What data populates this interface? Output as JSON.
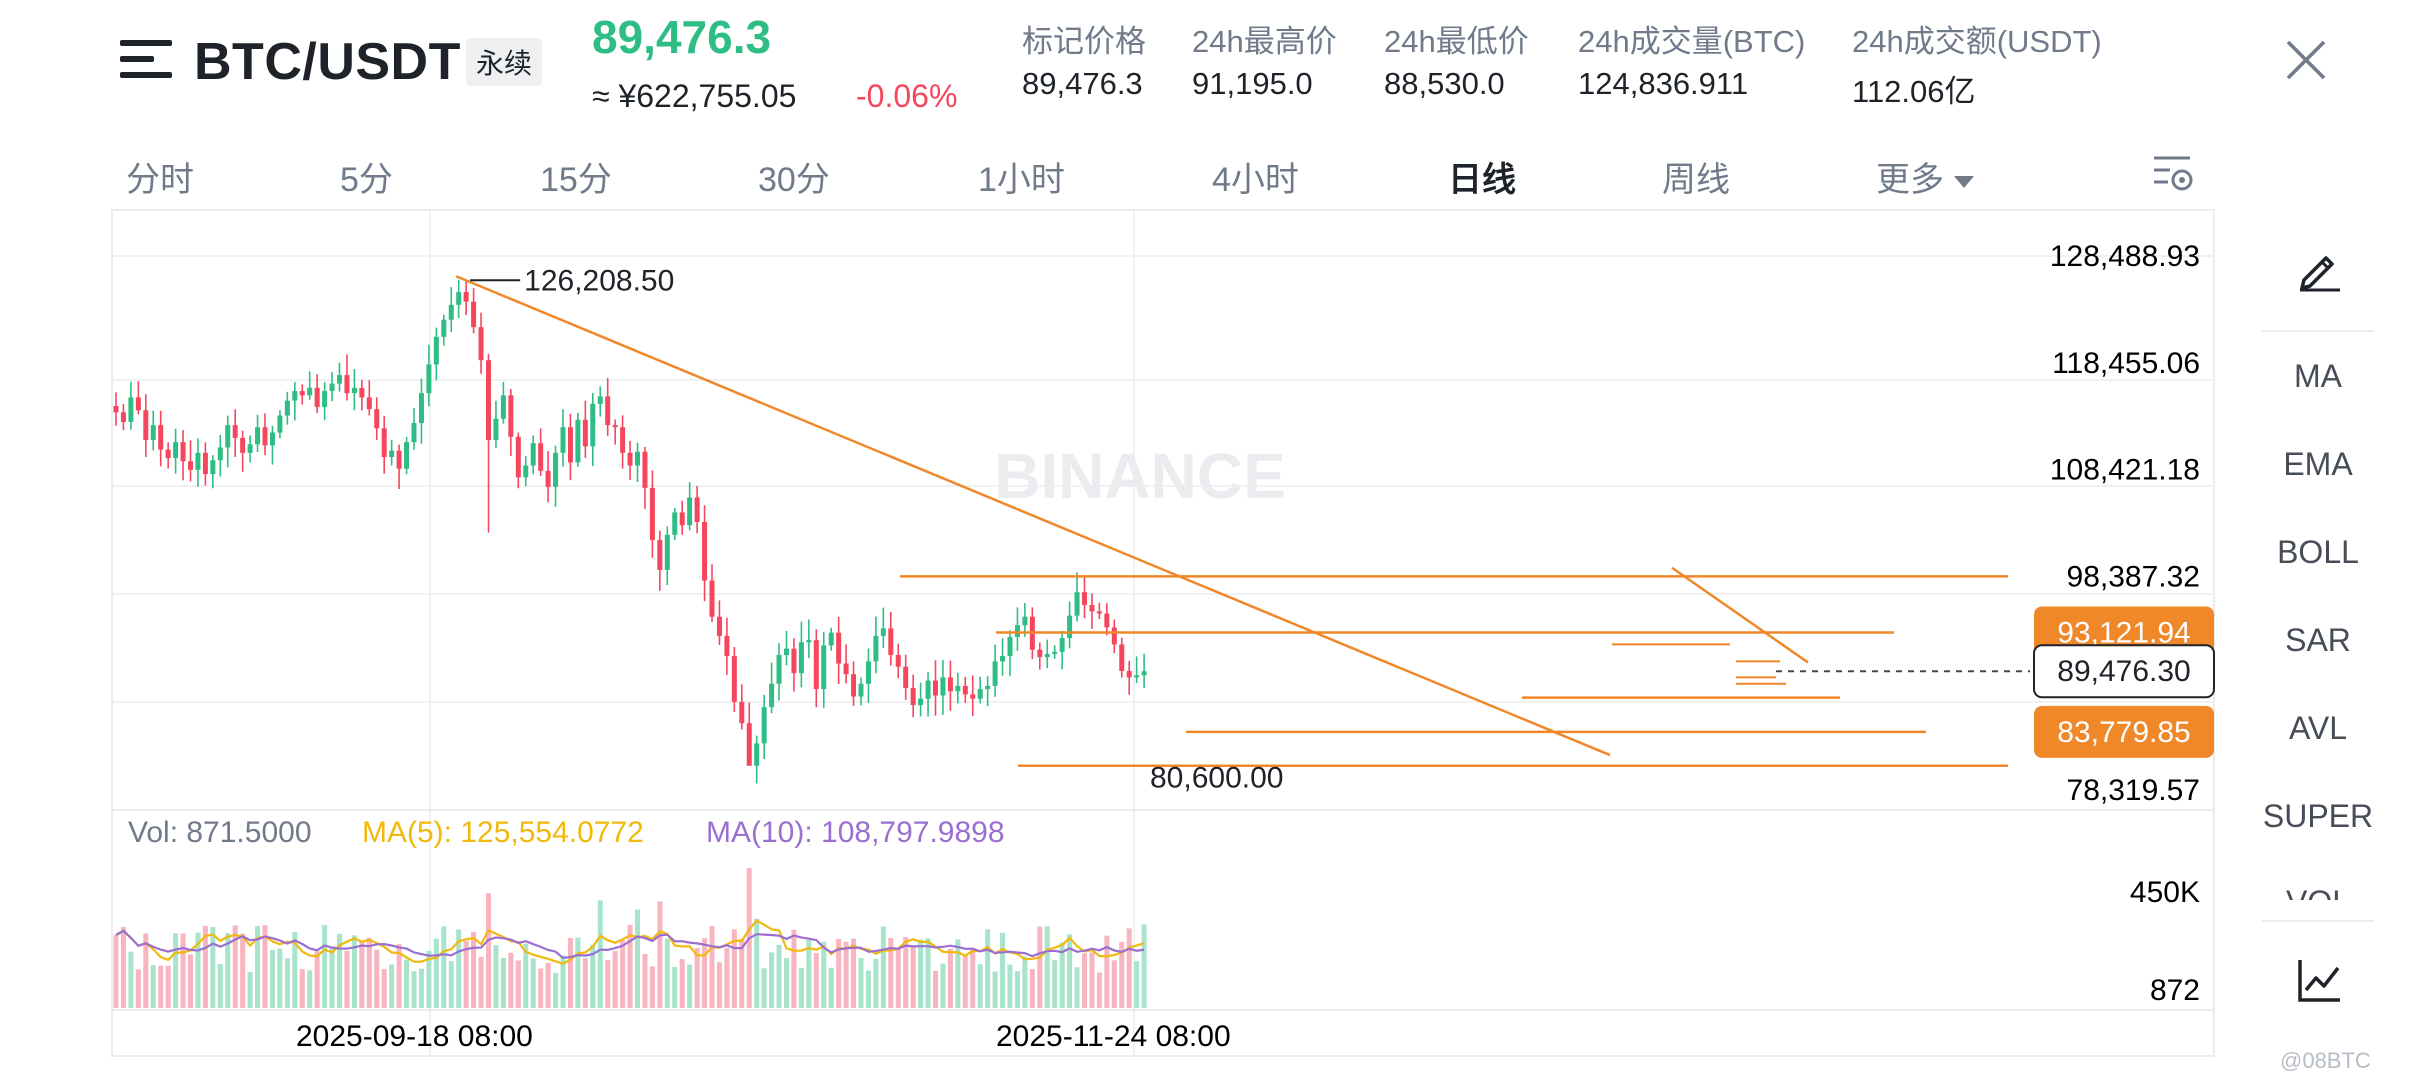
{
  "header": {
    "pair": "BTC/USDT",
    "contract_type": "永续",
    "last_price": "89,476.3",
    "cny_price": "≈ ¥622,755.05",
    "change_pct": "-0.06%",
    "stats": [
      {
        "label": "标记价格",
        "value": "89,476.3"
      },
      {
        "label": "24h最高价",
        "value": "91,195.0"
      },
      {
        "label": "24h最低价",
        "value": "88,530.0"
      },
      {
        "label": "24h成交量(BTC)",
        "value": "124,836.911"
      },
      {
        "label": "24h成交额(USDT)",
        "value": "112.06亿"
      }
    ]
  },
  "intervals": [
    {
      "label": "分时",
      "active": false
    },
    {
      "label": "5分",
      "active": false
    },
    {
      "label": "15分",
      "active": false
    },
    {
      "label": "30分",
      "active": false
    },
    {
      "label": "1小时",
      "active": false
    },
    {
      "label": "4小时",
      "active": false
    },
    {
      "label": "日线",
      "active": true
    },
    {
      "label": "周线",
      "active": false
    },
    {
      "label": "更多",
      "active": false
    }
  ],
  "toolbar": {
    "items": [
      "MA",
      "EMA",
      "BOLL",
      "SAR",
      "AVL",
      "SUPER"
    ],
    "partial_item": "VOL",
    "draw_icon": "pencil-icon",
    "indicator_icon": "chart-line-icon"
  },
  "watermark_text": "BINANCE",
  "corner_mark": "@08BTC",
  "colors": {
    "up": "#2ebd85",
    "down": "#f6465d",
    "drawing": "#f0882a",
    "ma5": "#f0b90b",
    "ma10": "#9b6fd1"
  },
  "volume_legend": {
    "vol": "Vol: 871.5000",
    "ma5": "MA(5): 125,554.0772",
    "ma10": "MA(10): 108,797.9898"
  },
  "chart_data": {
    "type": "candlestick",
    "interval": "1D",
    "y_axis_ticks": [
      "128,488.93",
      "118,455.06",
      "108,421.18",
      "98,387.32",
      "78,319.57"
    ],
    "y_axis_values": [
      128488.93,
      118455.06,
      108421.18,
      98387.32,
      78319.57
    ],
    "ylim": [
      75000,
      131000
    ],
    "x_axis_labels": [
      "2025-09-18 08:00",
      "2025-11-24 08:00"
    ],
    "volume_axis_ticks": [
      "450K",
      "872"
    ],
    "price_tags": [
      {
        "label": "93,121.94",
        "value": 93121.94,
        "style": "orange"
      },
      {
        "label": "89,476.30",
        "value": 89476.3,
        "style": "current"
      },
      {
        "label": "83,779.85",
        "value": 83779.85,
        "style": "orange"
      }
    ],
    "annotations": [
      {
        "label": "126,208.50",
        "value": 126208.5,
        "kind": "high"
      },
      {
        "label": "80,600.00",
        "value": 80600.0,
        "kind": "low"
      }
    ],
    "horizontal_levels": [
      98387.32,
      93121.94,
      89476.3,
      87000,
      83779.85,
      80600.0
    ],
    "trendline": {
      "from": 126208.5,
      "to": 81600
    },
    "closes": [
      113800,
      112900,
      115200,
      114000,
      111200,
      112600,
      110300,
      109500,
      111000,
      109200,
      108400,
      110000,
      108000,
      109300,
      110500,
      112600,
      111400,
      110000,
      110800,
      112400,
      110700,
      111900,
      113500,
      114900,
      115800,
      115400,
      116100,
      114300,
      115800,
      116500,
      117300,
      115600,
      116100,
      115200,
      114100,
      112300,
      109600,
      110200,
      108500,
      111000,
      112800,
      115600,
      118300,
      120900,
      122500,
      123900,
      125100,
      124200,
      121800,
      118700,
      111200,
      113200,
      115400,
      111500,
      107700,
      108800,
      110900,
      108300,
      106800,
      110000,
      112400,
      109100,
      113100,
      110600,
      114600,
      115300,
      112600,
      112400,
      110000,
      108800,
      110100,
      106700,
      101800,
      99000,
      102300,
      104400,
      103200,
      105800,
      103500,
      98000,
      94600,
      92800,
      90900,
      86600,
      84600,
      80600,
      82700,
      86100,
      88300,
      91000,
      91600,
      89300,
      92200,
      92400,
      87800,
      91900,
      93100,
      90200,
      89200,
      87100,
      88300,
      90400,
      92800,
      93500,
      91000,
      89900,
      87900,
      86300,
      86900,
      88600,
      87200,
      88900,
      87600,
      88100,
      87300,
      86900,
      87800,
      88100,
      90400,
      90900,
      92700,
      93800,
      94600,
      91500,
      90800,
      91100,
      91300,
      92600,
      94700,
      96900,
      95700,
      95100,
      94900,
      93600,
      92000,
      89500,
      88900,
      89100,
      89476
    ],
    "volume_ma_note": "MA(5) and MA(10) overlays on volume pane"
  }
}
